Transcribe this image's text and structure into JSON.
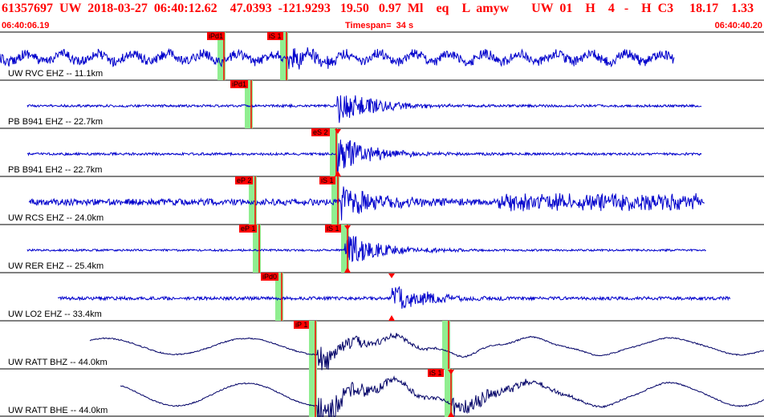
{
  "header": {
    "event_line": "61357697  UW  2018-03-27  06:40:12.62    47.0393  -121.9293   19.50   0.97  Ml    eq    L  amyw       UW  01    H    4   -    H  C3     18.17    1.33",
    "start_time": "06:40:06.19",
    "timespan": "Timespan=  34 s",
    "end_time": "06:40:40.20"
  },
  "colors": {
    "header_text": "#ff0000",
    "waveform": "#0000cc",
    "waveform_long_period": "#000066",
    "pick_window": "#90ee90",
    "pick_marker": "#ff0000"
  },
  "traces": [
    {
      "label": "UW RVC EHZ -- 11.1km",
      "picks": [
        "iPd1",
        "iS 1"
      ]
    },
    {
      "label": "PB B941 EHZ -- 22.7km",
      "picks": [
        "iPd1"
      ]
    },
    {
      "label": "PB B941 EH2 -- 22.7km",
      "picks": [
        "eS 2"
      ]
    },
    {
      "label": "UW RCS EHZ -- 24.0km",
      "picks": [
        "eP 2",
        "iS 1"
      ]
    },
    {
      "label": "UW RER EHZ -- 25.4km",
      "picks": [
        "eP 1",
        "iS 1"
      ]
    },
    {
      "label": "UW LO2 EHZ -- 33.4km",
      "picks": [
        "iPd0"
      ]
    },
    {
      "label": "UW RATT BHZ -- 44.0km",
      "picks": [
        "iP 1"
      ]
    },
    {
      "label": "UW RATT BHE -- 44.0km",
      "picks": [
        "iS 1"
      ]
    }
  ]
}
